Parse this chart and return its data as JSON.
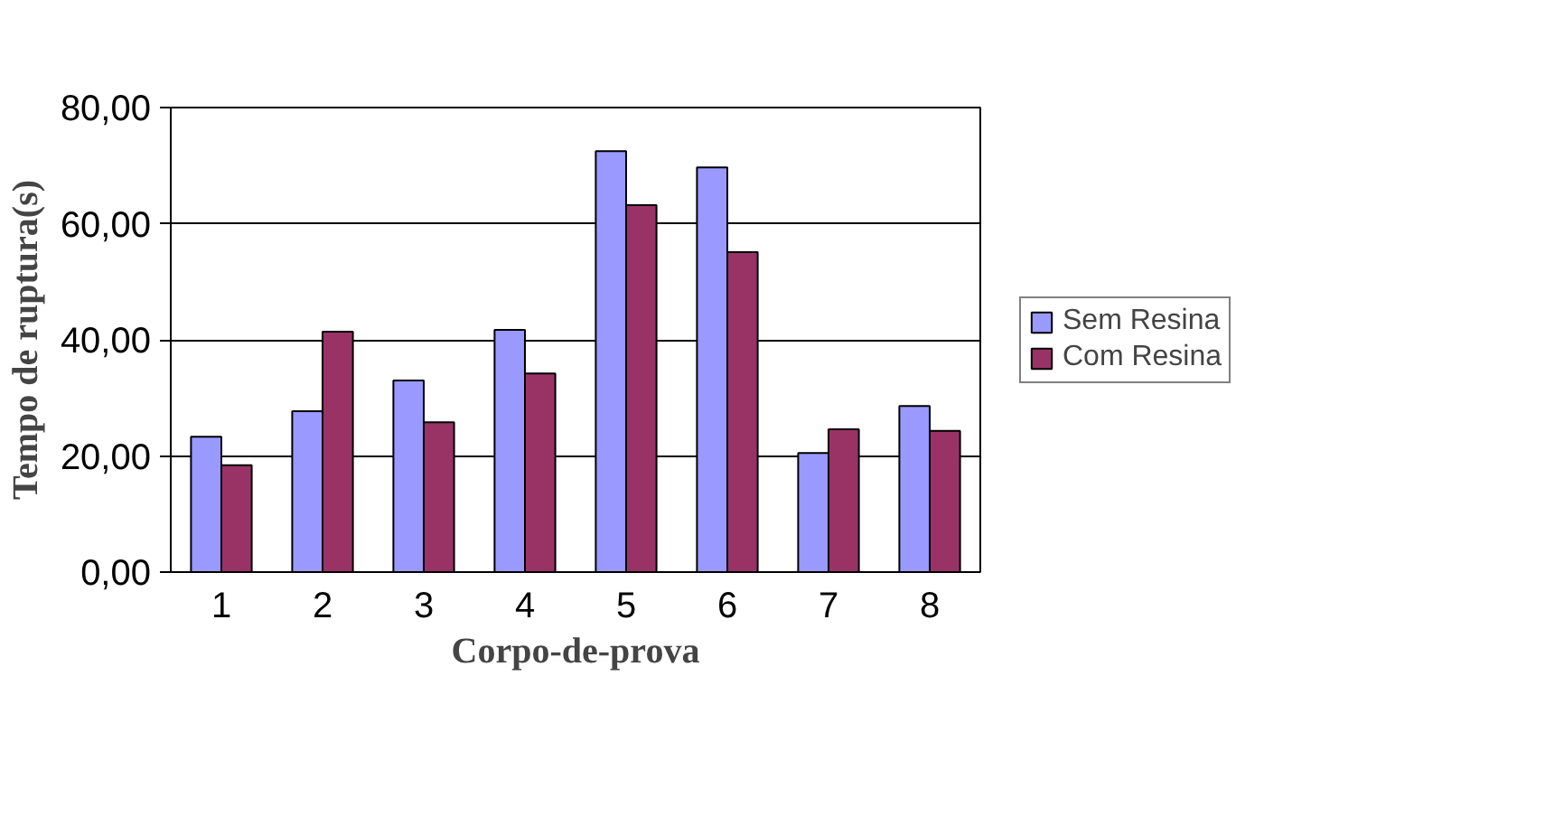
{
  "chart_data": {
    "type": "bar",
    "xlabel": "Corpo-de-prova",
    "ylabel": "Tempo de ruptura(s)",
    "categories": [
      "1",
      "2",
      "3",
      "4",
      "5",
      "6",
      "7",
      "8"
    ],
    "series": [
      {
        "name": "Sem Resina",
        "color": "#9999ff",
        "values": [
          23.3,
          27.7,
          33.0,
          41.7,
          72.5,
          69.7,
          20.5,
          28.6
        ]
      },
      {
        "name": "Com Resina",
        "color": "#993366",
        "values": [
          18.4,
          41.4,
          25.8,
          34.2,
          63.2,
          55.1,
          24.6,
          24.3
        ]
      }
    ],
    "ylim": [
      0,
      80
    ],
    "yticks": [
      {
        "value": 0,
        "label": "0,00"
      },
      {
        "value": 20,
        "label": "20,00"
      },
      {
        "value": 40,
        "label": "40,00"
      },
      {
        "value": 60,
        "label": "60,00"
      },
      {
        "value": 80,
        "label": "80,00"
      }
    ],
    "grid": "y",
    "legend": "right"
  }
}
